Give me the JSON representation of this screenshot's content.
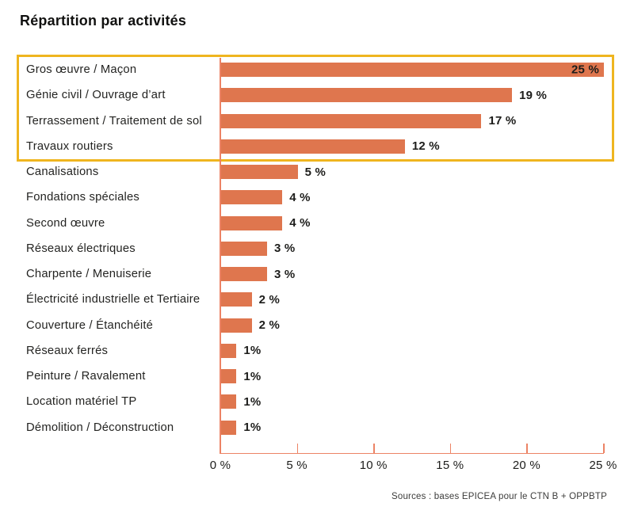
{
  "title": "Répartition par activités",
  "source": "Sources : bases EPICEA pour le CTN B + OPPBTP",
  "colors": {
    "bar": "#DF764E",
    "axis_line": "#EC8365",
    "highlight_box_border": "#EFB51F",
    "text": "#1D1D1B"
  },
  "highlight": {
    "description": "gold rectangle framing the top four activities",
    "rows_framed": 4
  },
  "chart_data": {
    "type": "bar",
    "orientation": "horizontal",
    "title": "Répartition par activités",
    "categories": [
      "Gros œuvre / Maçon",
      "Génie civil / Ouvrage d’art",
      "Terrassement / Traitement de sol",
      "Travaux routiers",
      "Canalisations",
      "Fondations spéciales",
      "Second œuvre",
      "Réseaux électriques",
      "Charpente / Menuiserie",
      "Électricité industrielle et Tertiaire",
      "Couverture / Étanchéité",
      "Réseaux ferrés",
      "Peinture / Ravalement",
      "Location matériel TP",
      "Démolition / Déconstruction"
    ],
    "values": [
      25,
      19,
      17,
      12,
      5,
      4,
      4,
      3,
      3,
      2,
      2,
      1,
      1,
      1,
      1
    ],
    "value_labels": [
      "25 %",
      "19 %",
      "17 %",
      "12 %",
      "5 %",
      "4 %",
      "4 %",
      "3 %",
      "3 %",
      "2 %",
      "2 %",
      "1%",
      "1%",
      "1%",
      "1%"
    ],
    "xlim": [
      0,
      25
    ],
    "xticks": [
      0,
      5,
      10,
      15,
      20,
      25
    ],
    "xtick_labels": [
      "0 %",
      "5 %",
      "10 %",
      "15 %",
      "20 %",
      "25 %"
    ],
    "grid": false,
    "legend": false
  }
}
